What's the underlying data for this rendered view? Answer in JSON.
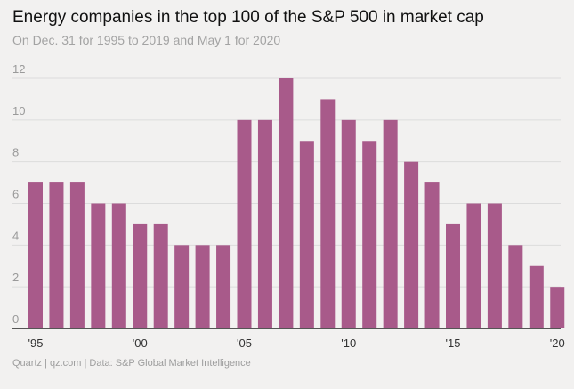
{
  "chart_data": {
    "type": "bar",
    "title": "Energy companies in the top 100 of the S&P 500 in market cap",
    "subtitle": "On Dec. 31 for 1995 to 2019 and May 1 for 2020",
    "xlabel": "",
    "ylabel": "",
    "ylim": [
      0,
      12
    ],
    "yticks": [
      0,
      2,
      4,
      6,
      8,
      10,
      12
    ],
    "grid": true,
    "categories": [
      1995,
      1996,
      1997,
      1998,
      1999,
      2000,
      2001,
      2002,
      2003,
      2004,
      2005,
      2006,
      2007,
      2008,
      2009,
      2010,
      2011,
      2012,
      2013,
      2014,
      2015,
      2016,
      2017,
      2018,
      2019,
      2020
    ],
    "values": [
      7,
      7,
      7,
      6,
      6,
      5,
      5,
      4,
      4,
      4,
      10,
      10,
      12,
      9,
      11,
      10,
      9,
      10,
      8,
      7,
      5,
      6,
      6,
      4,
      3,
      2
    ],
    "xtick_labels": [
      {
        "category": 1995,
        "label": "'95"
      },
      {
        "category": 2000,
        "label": "'00"
      },
      {
        "category": 2005,
        "label": "'05"
      },
      {
        "category": 2010,
        "label": "'10"
      },
      {
        "category": 2015,
        "label": "'15"
      },
      {
        "category": 2020,
        "label": "'20"
      }
    ],
    "bar_color": "#a85a8a",
    "source": "Quartz | qz.com | Data: S&P Global Market Intelligence"
  },
  "colors": {
    "background": "#f2f1f0",
    "gridline": "#dcdcdc",
    "baseline": "#555555"
  }
}
